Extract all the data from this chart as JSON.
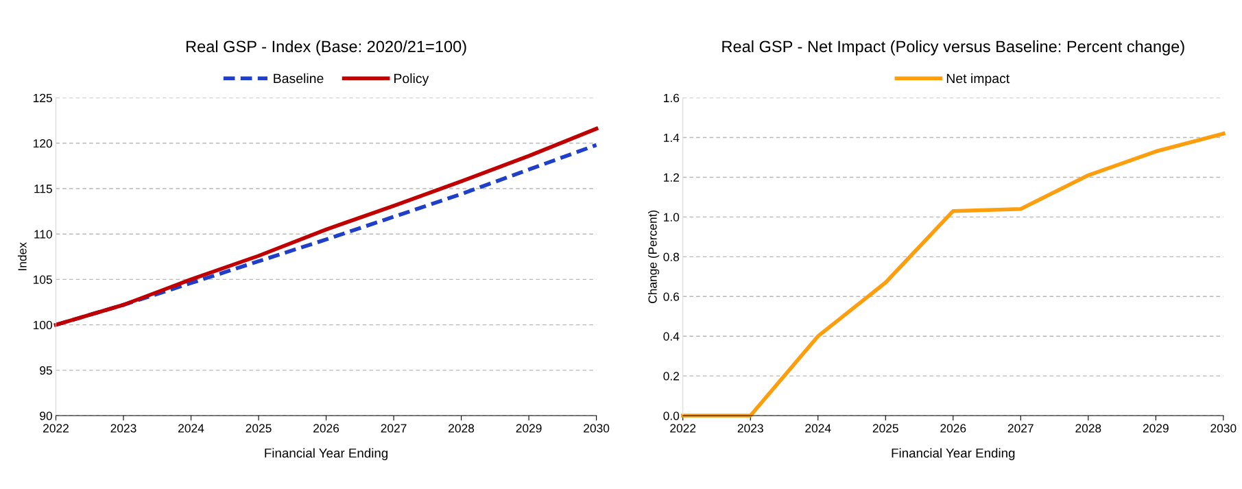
{
  "chart_data": [
    {
      "type": "line",
      "title": "Real GSP - Index (Base: 2020/21=100)",
      "xlabel": "Financial Year Ending",
      "ylabel": "Index",
      "x": [
        2022,
        2023,
        2024,
        2025,
        2026,
        2027,
        2028,
        2029,
        2030
      ],
      "series": [
        {
          "name": "Baseline",
          "color": "#1f3fc9",
          "line_style": "dashed",
          "values": [
            100,
            102.2,
            104.6,
            107.0,
            109.4,
            111.9,
            114.4,
            117.1,
            119.8
          ]
        },
        {
          "name": "Policy",
          "color": "#c00000",
          "line_style": "solid",
          "values": [
            100,
            102.2,
            105.0,
            107.6,
            110.5,
            113.1,
            115.8,
            118.6,
            121.6
          ]
        }
      ],
      "xlim": [
        2022,
        2030
      ],
      "xticks": [
        2022,
        2023,
        2024,
        2025,
        2026,
        2027,
        2028,
        2029,
        2030
      ],
      "ylim": [
        90,
        125
      ],
      "yticks": [
        90,
        95,
        100,
        105,
        110,
        115,
        120,
        125
      ],
      "grid": "y",
      "legend": "top",
      "marker": "none"
    },
    {
      "type": "line",
      "title": "Real GSP - Net Impact (Policy versus Baseline: Percent change)",
      "xlabel": "Financial Year Ending",
      "ylabel": "Change (Percent)",
      "x": [
        2022,
        2023,
        2024,
        2025,
        2026,
        2027,
        2028,
        2029,
        2030
      ],
      "series": [
        {
          "name": "Net impact",
          "color": "#ff9e0d",
          "line_style": "solid",
          "values": [
            0,
            0,
            0.4,
            0.67,
            1.03,
            1.04,
            1.21,
            1.33,
            1.42
          ]
        }
      ],
      "xlim": [
        2022,
        2030
      ],
      "xticks": [
        2022,
        2023,
        2024,
        2025,
        2026,
        2027,
        2028,
        2029,
        2030
      ],
      "ylim": [
        0,
        1.6
      ],
      "yticks": [
        {
          "value": 0,
          "label": "0.0"
        },
        0.2,
        0.4,
        0.6,
        0.8,
        {
          "value": 1,
          "label": "1.0"
        },
        1.2,
        1.4,
        1.6
      ],
      "grid": "y",
      "legend": "top",
      "marker": "none"
    }
  ]
}
